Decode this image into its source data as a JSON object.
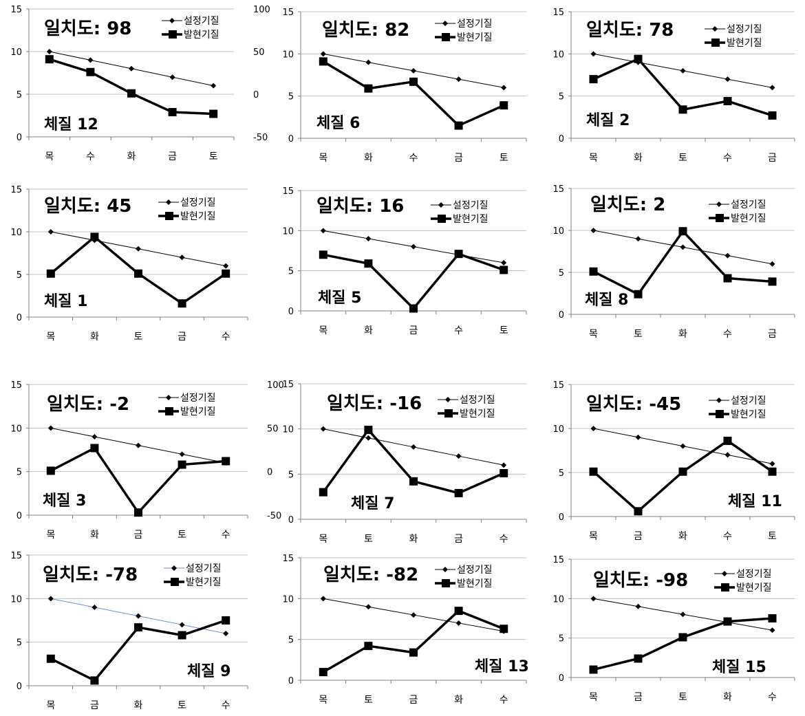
{
  "colors": {
    "set_line": "#000000",
    "actual_line": "#000000",
    "grid": "#bfbfbf",
    "axis": "#7f7f7f",
    "text": "#000000",
    "blue_set_line": "#6b8fc7"
  },
  "legend": {
    "set": "설정기질",
    "actual": "발현기질"
  },
  "chart_data": [
    {
      "type": "line",
      "score": "일치도: 98",
      "constitution": "체질 12",
      "categories": [
        "목",
        "수",
        "화",
        "금",
        "토"
      ],
      "ylim": [
        0,
        15
      ],
      "yticks": [
        "0",
        "5",
        "10",
        "15"
      ],
      "secondary_yticks": [
        "-50",
        "0",
        "50",
        "100"
      ],
      "legend_position": "top-right",
      "grid": true,
      "series": [
        {
          "name": "설정기질",
          "values": [
            10,
            9,
            8,
            7,
            6
          ]
        },
        {
          "name": "발현기질",
          "values": [
            9.1,
            7.6,
            5.1,
            2.9,
            2.7
          ]
        }
      ]
    },
    {
      "type": "line",
      "score": "일치도: 82",
      "constitution": "체질 6",
      "categories": [
        "목",
        "화",
        "수",
        "금",
        "토"
      ],
      "ylim": [
        0,
        15
      ],
      "yticks": [
        "0",
        "5",
        "10",
        "15"
      ],
      "secondary_yticks": [],
      "legend_position": "top-right",
      "grid": true,
      "series": [
        {
          "name": "설정기질",
          "values": [
            10,
            9,
            8,
            7,
            6
          ]
        },
        {
          "name": "발현기질",
          "values": [
            9.1,
            5.9,
            6.7,
            1.5,
            3.9
          ]
        }
      ]
    },
    {
      "type": "line",
      "score": "일치도: 78",
      "constitution": "체질 2",
      "categories": [
        "목",
        "화",
        "토",
        "수",
        "금"
      ],
      "ylim": [
        0,
        15
      ],
      "yticks": [
        "0",
        "5",
        "10",
        "15"
      ],
      "secondary_yticks": [],
      "legend_position": "top-right",
      "grid": true,
      "series": [
        {
          "name": "설정기질",
          "values": [
            10,
            9,
            8,
            7,
            6
          ]
        },
        {
          "name": "발현기질",
          "values": [
            7.0,
            9.4,
            3.4,
            4.4,
            2.7
          ]
        }
      ]
    },
    {
      "type": "line",
      "score": "일치도: 45",
      "constitution": "체질 1",
      "categories": [
        "목",
        "화",
        "토",
        "금",
        "수"
      ],
      "ylim": [
        0,
        15
      ],
      "yticks": [
        "0",
        "5",
        "10",
        "15"
      ],
      "secondary_yticks": [],
      "legend_position": "top-right",
      "grid": true,
      "series": [
        {
          "name": "설정기질",
          "values": [
            10,
            9,
            8,
            7,
            6
          ]
        },
        {
          "name": "발현기질",
          "values": [
            5.1,
            9.4,
            5.1,
            1.6,
            5.1
          ]
        }
      ]
    },
    {
      "type": "line",
      "score": "일치도: 16",
      "constitution": "체질 5",
      "categories": [
        "목",
        "화",
        "금",
        "수",
        "토"
      ],
      "ylim": [
        0,
        15
      ],
      "yticks": [
        "0",
        "5",
        "10",
        "15"
      ],
      "secondary_yticks": [],
      "legend_position": "top-right",
      "grid": true,
      "series": [
        {
          "name": "설정기질",
          "values": [
            10,
            9,
            8,
            7,
            6
          ]
        },
        {
          "name": "발현기질",
          "values": [
            7.0,
            5.9,
            0.3,
            7.1,
            5.1
          ]
        }
      ]
    },
    {
      "type": "line",
      "score": "일치도: 2",
      "constitution": "체질 8",
      "categories": [
        "목",
        "토",
        "화",
        "수",
        "금"
      ],
      "ylim": [
        0,
        15
      ],
      "yticks": [
        "0",
        "5",
        "10",
        "15"
      ],
      "secondary_yticks": [],
      "legend_position": "top-right",
      "grid": true,
      "series": [
        {
          "name": "설정기질",
          "values": [
            10,
            9,
            8,
            7,
            6
          ]
        },
        {
          "name": "발현기질",
          "values": [
            5.1,
            2.4,
            9.9,
            4.3,
            3.9
          ]
        }
      ]
    },
    {
      "type": "line",
      "score": "일치도: -2",
      "constitution": "체질 3",
      "categories": [
        "목",
        "화",
        "금",
        "토",
        "수"
      ],
      "ylim": [
        0,
        15
      ],
      "yticks": [
        "0",
        "5",
        "10",
        "15"
      ],
      "secondary_yticks": [
        "-50",
        "0",
        "50",
        "100"
      ],
      "legend_position": "top-right",
      "grid": true,
      "series": [
        {
          "name": "설정기질",
          "values": [
            10,
            9,
            8,
            7,
            6
          ]
        },
        {
          "name": "발현기질",
          "values": [
            5.1,
            7.7,
            0.3,
            5.8,
            6.2
          ]
        }
      ]
    },
    {
      "type": "line",
      "score": "일치도: -16",
      "constitution": "체질 7",
      "categories": [
        "목",
        "토",
        "화",
        "금",
        "수"
      ],
      "ylim": [
        0,
        15
      ],
      "yticks": [
        "0",
        "5",
        "10",
        "15"
      ],
      "secondary_yticks": [],
      "legend_position": "top-right",
      "grid": true,
      "series": [
        {
          "name": "설정기질",
          "values": [
            10,
            9,
            8,
            7,
            6
          ]
        },
        {
          "name": "발현기질",
          "values": [
            3.0,
            9.9,
            4.2,
            2.9,
            5.1
          ]
        }
      ]
    },
    {
      "type": "line",
      "score": "일치도: -45",
      "constitution": "체질 11",
      "categories": [
        "목",
        "금",
        "화",
        "수",
        "토"
      ],
      "ylim": [
        0,
        15
      ],
      "yticks": [
        "0",
        "5",
        "10",
        "15"
      ],
      "secondary_yticks": [],
      "legend_position": "top-right",
      "grid": true,
      "series": [
        {
          "name": "설정기질",
          "values": [
            10,
            9,
            8,
            7,
            6
          ]
        },
        {
          "name": "발현기질",
          "values": [
            5.1,
            0.6,
            5.1,
            8.6,
            5.1
          ]
        }
      ]
    },
    {
      "type": "line",
      "score": "일치도: -78",
      "constitution": "체질 9",
      "categories": [
        "목",
        "금",
        "화",
        "토",
        "수"
      ],
      "ylim": [
        0,
        15
      ],
      "yticks": [
        "0",
        "5",
        "10",
        "15"
      ],
      "secondary_yticks": [],
      "legend_position": "top-right",
      "grid": true,
      "series": [
        {
          "name": "설정기질",
          "values": [
            10,
            9,
            8,
            7,
            6
          ],
          "color": "#6b8fc7"
        },
        {
          "name": "발현기질",
          "values": [
            3.1,
            0.6,
            6.7,
            5.8,
            7.5
          ]
        }
      ]
    },
    {
      "type": "line",
      "score": "일치도: -82",
      "constitution": "체질 13",
      "categories": [
        "목",
        "토",
        "금",
        "화",
        "수"
      ],
      "ylim": [
        0,
        15
      ],
      "yticks": [
        "0",
        "5",
        "10",
        "15"
      ],
      "secondary_yticks": [],
      "legend_position": "top-right",
      "grid": true,
      "series": [
        {
          "name": "설정기질",
          "values": [
            10,
            9,
            8,
            7,
            6
          ]
        },
        {
          "name": "발현기질",
          "values": [
            1.0,
            4.2,
            3.4,
            8.5,
            6.3
          ]
        }
      ]
    },
    {
      "type": "line",
      "score": "일치도: -98",
      "constitution": "체질 15",
      "categories": [
        "목",
        "금",
        "토",
        "화",
        "수"
      ],
      "ylim": [
        0,
        15
      ],
      "yticks": [
        "0",
        "5",
        "10",
        "15"
      ],
      "secondary_yticks": [],
      "legend_position": "top-right",
      "grid": true,
      "series": [
        {
          "name": "설정기질",
          "values": [
            10,
            9,
            8,
            7,
            6
          ]
        },
        {
          "name": "발현기질",
          "values": [
            1.0,
            2.4,
            5.1,
            7.1,
            7.5
          ]
        }
      ]
    }
  ]
}
